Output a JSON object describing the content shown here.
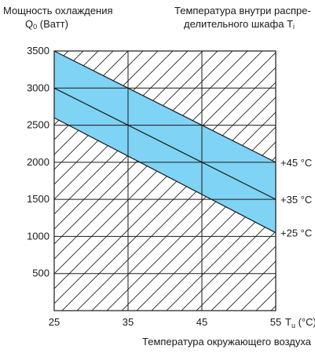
{
  "chart_data": {
    "type": "area",
    "ylabel_line1": "Мощность охлаждения",
    "ylabel_q": "Q",
    "ylabel_q_sub": "0",
    "ylabel_unit": "(Ватт)",
    "legend_title_line1": "Температура внутри распре-",
    "legend_title_line2": "делительного шкафа T",
    "legend_title_sub": "i",
    "xlabel": "Температура окружающего воздуха",
    "x_axis_symbol": "T",
    "x_axis_symbol_sub": "u",
    "x_axis_unit": "(°C)",
    "xlim": [
      25,
      55
    ],
    "ylim": [
      0,
      3500
    ],
    "x_ticks": [
      "25",
      "35",
      "45",
      "55"
    ],
    "y_ticks": [
      "500",
      "1000",
      "1500",
      "2000",
      "2500",
      "3000",
      "3500"
    ],
    "x_tick_values": [
      25,
      35,
      45,
      55
    ],
    "y_tick_values": [
      500,
      1000,
      1500,
      2000,
      2500,
      3000,
      3500
    ],
    "grid": true,
    "series": [
      {
        "name": "+45 °C",
        "x": [
          25,
          55
        ],
        "y": [
          3500,
          2000
        ]
      },
      {
        "name": "+35 °C",
        "x": [
          25,
          55
        ],
        "y": [
          3000,
          1500
        ]
      },
      {
        "name": "+25 °C",
        "x": [
          25,
          55
        ],
        "y": [
          2600,
          1050
        ]
      }
    ],
    "band_color": "#7fd3f4",
    "line_color": "#1a1a1a"
  }
}
